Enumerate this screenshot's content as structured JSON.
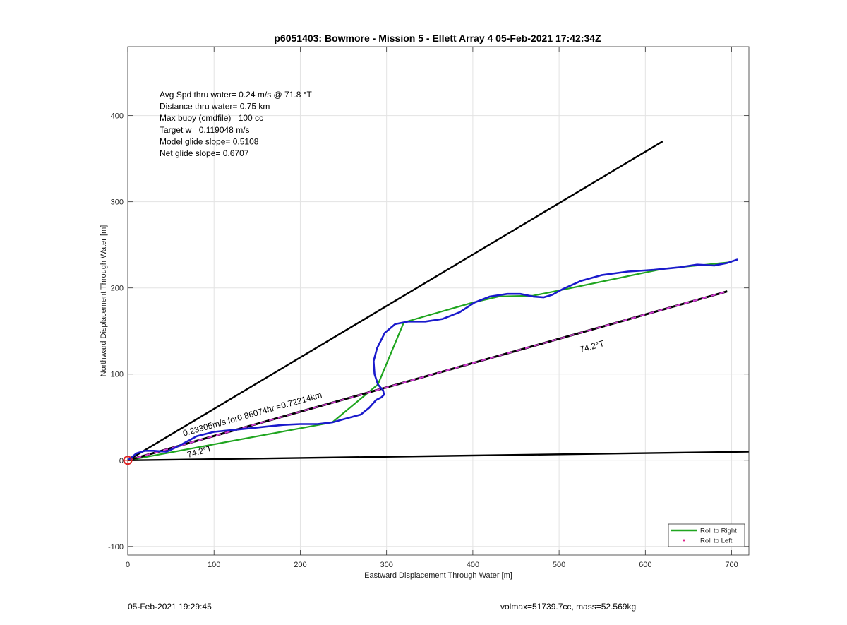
{
  "chart_data": {
    "type": "line",
    "title": "p6051403: Bowmore - Mission 5 - Ellett Array 4 05-Feb-2021 17:42:34Z",
    "xlabel": "Eastward Displacement Through Water [m]",
    "ylabel": "Northward Displacement Through Water [m]",
    "xlim": [
      0,
      720
    ],
    "ylim": [
      -110,
      480
    ],
    "grid": true,
    "x_ticks": [
      0,
      100,
      200,
      300,
      400,
      500,
      600,
      700
    ],
    "y_ticks": [
      -100,
      0,
      100,
      200,
      300,
      400
    ],
    "info_lines": [
      "Avg Spd thru water=  0.24 m/s @  71.8 °T",
      "Distance thru water=  0.75 km",
      "Max buoy (cmdfile)= 100 cc",
      "Target w= 0.119048 m/s",
      "Model glide slope= 0.5108",
      "Net glide slope= 0.6707"
    ],
    "annotations": [
      {
        "text": "0.23305m/s for0.86074hr =0.72214km",
        "x": 65,
        "y": 28,
        "angle_data": 19.3
      },
      {
        "text": "74.2°T",
        "x": 70,
        "y": 3,
        "angle_data": 19.3
      },
      {
        "text": "74.2°T",
        "x": 525,
        "y": 125,
        "angle_data": 19.3
      }
    ],
    "legend": {
      "position": "bottom-right",
      "entries": [
        {
          "label": "Roll to Right",
          "color": "#1fa51f",
          "style": "solid"
        },
        {
          "label": "Roll to Left",
          "color": "#e0218a",
          "style": "dot"
        }
      ]
    },
    "series": [
      {
        "role": "bound-upper",
        "color": "#000000",
        "style": "solid",
        "x": [
          0,
          620
        ],
        "y": [
          0,
          370
        ]
      },
      {
        "role": "bound-lower",
        "color": "#000000",
        "style": "solid",
        "x": [
          0,
          720
        ],
        "y": [
          0,
          10
        ]
      },
      {
        "role": "track-heading",
        "color": "#000000",
        "dash_color": "#d63cd6",
        "style": "dashed",
        "x": [
          0,
          695
        ],
        "y": [
          0,
          196
        ]
      },
      {
        "role": "roll-right",
        "color": "#1fa51f",
        "style": "solid",
        "x": [
          0,
          237,
          290,
          320,
          400,
          430,
          470,
          505,
          620,
          700
        ],
        "y": [
          0,
          44,
          88,
          160,
          183,
          190,
          191,
          198,
          222,
          230
        ]
      },
      {
        "role": "roll-right-spur",
        "color": "#1fa51f",
        "style": "solid",
        "x": [
          0,
          70
        ],
        "y": [
          0,
          20
        ]
      },
      {
        "role": "track",
        "color": "#1a1acc",
        "style": "solid",
        "x": [
          0,
          4,
          10,
          20,
          30,
          45,
          60,
          80,
          100,
          120,
          150,
          180,
          200,
          220,
          237,
          255,
          270,
          280,
          288,
          294,
          297,
          296,
          290,
          286,
          285,
          289,
          298,
          310,
          325,
          345,
          365,
          385,
          402,
          420,
          440,
          455,
          470,
          482,
          492,
          505,
          525,
          550,
          580,
          610,
          640,
          660,
          680,
          695,
          707
        ],
        "y": [
          0,
          3,
          8,
          11,
          11,
          10,
          17,
          28,
          33,
          35,
          38,
          41,
          42,
          42,
          44,
          49,
          53,
          61,
          70,
          73,
          76,
          81,
          88,
          100,
          115,
          130,
          148,
          158,
          161,
          161,
          164,
          172,
          183,
          190,
          193,
          193,
          190,
          189,
          192,
          199,
          208,
          215,
          219,
          221,
          224,
          227,
          226,
          229,
          233
        ]
      }
    ]
  },
  "footer": {
    "left": "05-Feb-2021 19:29:45",
    "right": "volmax=51739.7cc, mass=52.569kg"
  }
}
